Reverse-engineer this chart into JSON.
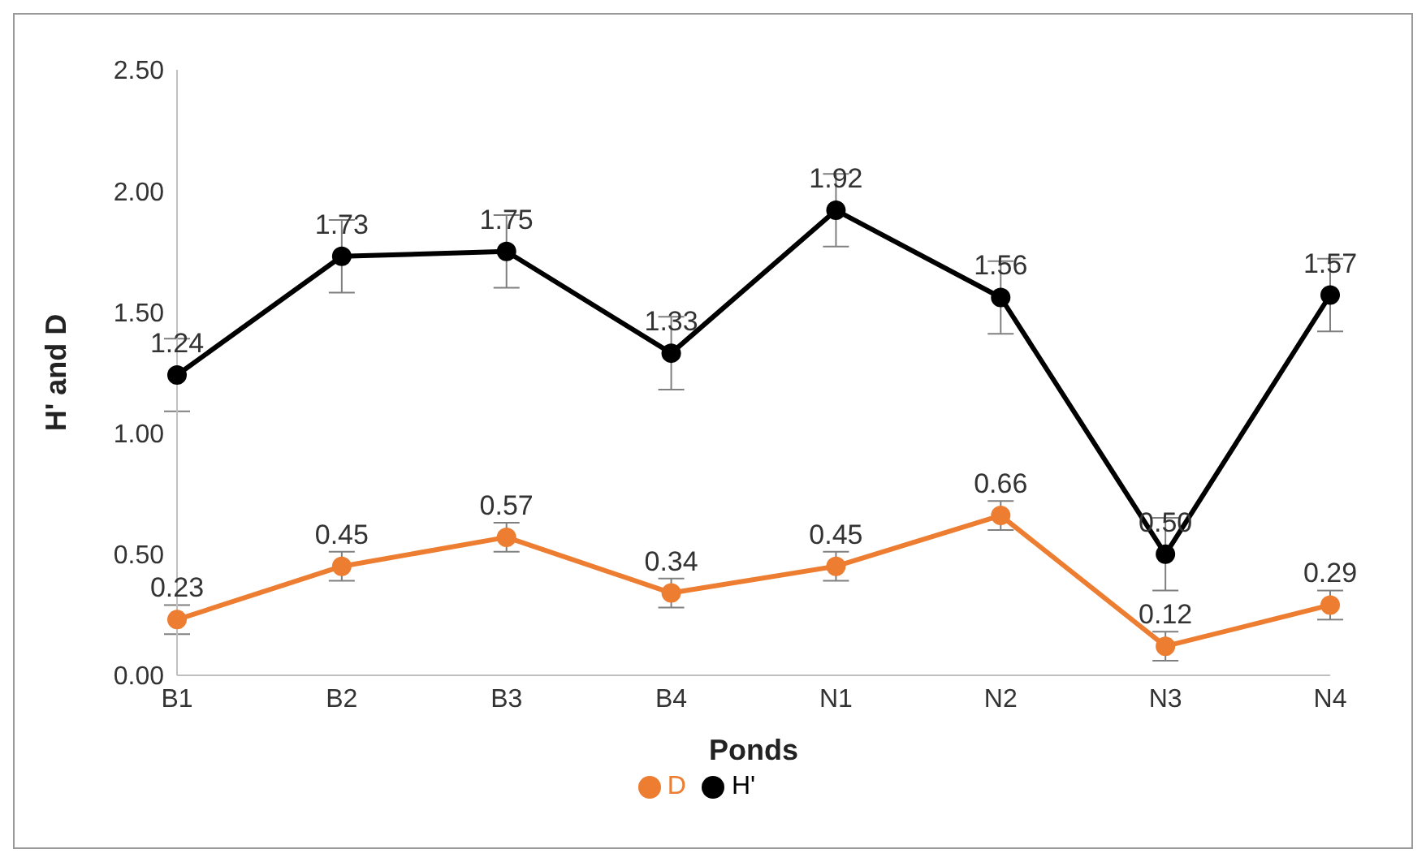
{
  "chart_data": {
    "type": "line",
    "xlabel": "Ponds",
    "ylabel": "H' and D",
    "categories": [
      "B1",
      "B2",
      "B3",
      "B4",
      "N1",
      "N2",
      "N3",
      "N4"
    ],
    "series": [
      {
        "name": "H'",
        "color": "#000000",
        "values": [
          1.24,
          1.73,
          1.75,
          1.33,
          1.92,
          1.56,
          0.5,
          1.57
        ],
        "errors": [
          0.15,
          0.15,
          0.15,
          0.15,
          0.15,
          0.15,
          0.15,
          0.15
        ],
        "value_labels": [
          "1.24",
          "1.73",
          "1.75",
          "1.33",
          "1.92",
          "1.56",
          "0.50",
          "1.57"
        ]
      },
      {
        "name": "D",
        "color": "#ed7d31",
        "values": [
          0.23,
          0.45,
          0.57,
          0.34,
          0.45,
          0.66,
          0.12,
          0.29
        ],
        "errors": [
          0.06,
          0.06,
          0.06,
          0.06,
          0.06,
          0.06,
          0.06,
          0.06
        ],
        "value_labels": [
          "0.23",
          "0.45",
          "0.57",
          "0.34",
          "0.45",
          "0.66",
          "0.12",
          "0.29"
        ]
      }
    ],
    "ylim": [
      0,
      2.5
    ],
    "yticks": [
      {
        "value": 0,
        "label": "0.00"
      },
      {
        "value": 0.5,
        "label": "0.50"
      },
      {
        "value": 1,
        "label": "1.00"
      },
      {
        "value": 1.5,
        "label": "1.50"
      },
      {
        "value": 2,
        "label": "2.00"
      },
      {
        "value": 2.5,
        "label": "2.50"
      }
    ],
    "grid": false,
    "legend": "bottom",
    "marker": "circle",
    "line_style": "solid"
  }
}
